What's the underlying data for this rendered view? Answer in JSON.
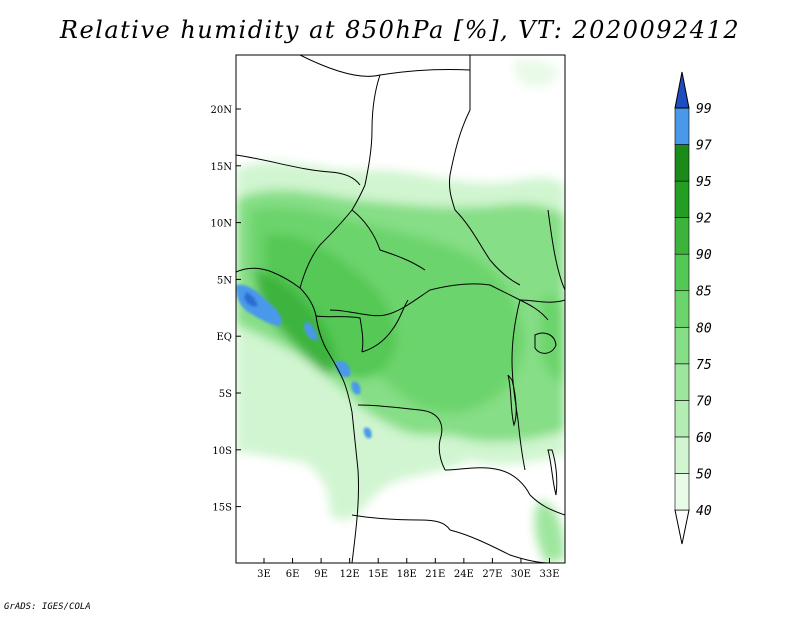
{
  "title": "Relative humidity at 850hPa [%], VT: 2020092412",
  "credit": "GrADS: IGES/COLA",
  "map": {
    "lat_ticks": [
      "20N",
      "15N",
      "10N",
      "5N",
      "EQ",
      "5S",
      "10S",
      "15S"
    ],
    "lon_ticks": [
      "3E",
      "6E",
      "9E",
      "12E",
      "15E",
      "18E",
      "21E",
      "24E",
      "27E",
      "30E",
      "33E"
    ]
  },
  "colorbar": {
    "levels": [
      "40",
      "50",
      "60",
      "70",
      "75",
      "80",
      "85",
      "90",
      "92",
      "95",
      "97",
      "99"
    ],
    "colors": [
      "#e8fae8",
      "#d0f5d0",
      "#b4edb4",
      "#9ee69e",
      "#86de86",
      "#6cd46c",
      "#54c854",
      "#3cb43c",
      "#239e23",
      "#1a8a1a",
      "#4a98ea",
      "#2a6cd4",
      "#1c4ec0"
    ]
  }
}
